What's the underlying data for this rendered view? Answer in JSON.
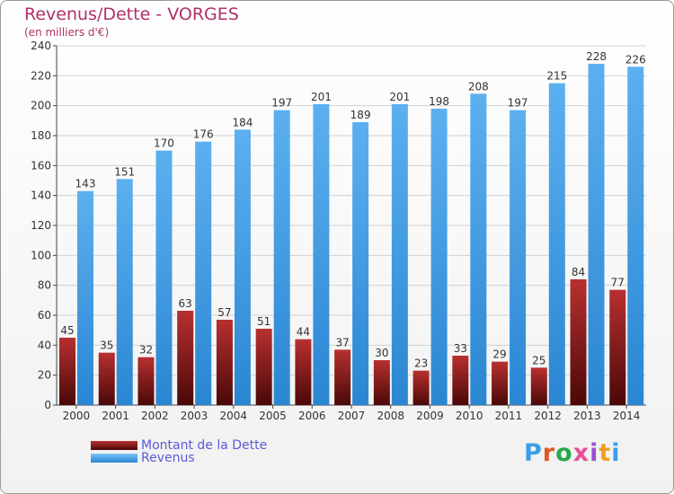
{
  "header": {
    "title": "Revenus/Dette - VORGES",
    "subtitle": "(en milliers d'€)"
  },
  "legend": {
    "items": [
      {
        "label": "Montant de la Dette",
        "color": "#7a1414"
      },
      {
        "label": "Revenus",
        "color": "#3c9ee6"
      }
    ]
  },
  "logo": {
    "text": "Proxiti",
    "colors": [
      "#3c9ee6",
      "#e05a1e",
      "#2aa84a",
      "#e84e94",
      "#9a4fd0",
      "#f0a020",
      "#3c9ee6"
    ]
  },
  "chart_data": {
    "type": "bar",
    "categories": [
      "2000",
      "2001",
      "2002",
      "2003",
      "2004",
      "2005",
      "2006",
      "2007",
      "2008",
      "2009",
      "2010",
      "2011",
      "2012",
      "2013",
      "2014"
    ],
    "series": [
      {
        "name": "Montant de la Dette",
        "color": "#7a1414",
        "values": [
          45,
          35,
          32,
          63,
          57,
          51,
          44,
          37,
          30,
          23,
          33,
          29,
          25,
          84,
          77
        ]
      },
      {
        "name": "Revenus",
        "color": "#3c9ee6",
        "values": [
          143,
          151,
          170,
          176,
          184,
          197,
          201,
          189,
          201,
          198,
          208,
          197,
          215,
          228,
          226
        ]
      }
    ],
    "yticks": [
      0,
      20,
      40,
      60,
      80,
      100,
      120,
      140,
      160,
      180,
      200,
      220,
      240
    ],
    "ylim": [
      0,
      240
    ],
    "xlabel": "",
    "ylabel": "",
    "grid": true
  }
}
